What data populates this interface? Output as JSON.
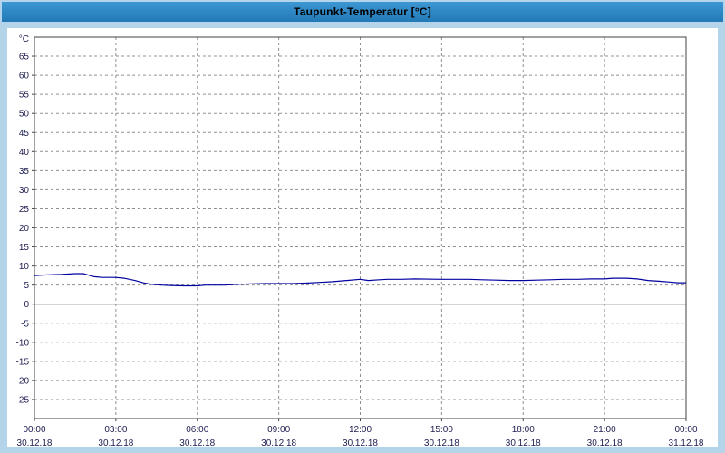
{
  "window": {
    "title": "Taupunkt-Temperatur [°C]"
  },
  "colors": {
    "titlebar": "#2e86c6",
    "frame": "#b3d4e9",
    "plot_background": "#ffffff",
    "plot_border": "#404040",
    "grid": "#909090",
    "zero_line": "#505050",
    "axis_text": "#1c1c50",
    "series_line": "#0000a0"
  },
  "chart_data": {
    "type": "line",
    "title": "Taupunkt-Temperatur [°C]",
    "ylabel": "°C",
    "ylim": [
      -30,
      70
    ],
    "x_range": [
      0,
      24
    ],
    "grid": "dashed",
    "yticks": [
      65,
      60,
      55,
      50,
      45,
      40,
      35,
      30,
      25,
      20,
      15,
      10,
      5,
      0,
      -5,
      -10,
      -15,
      -20,
      -25
    ],
    "xticks": [
      {
        "hour": 0,
        "time": "00:00",
        "date": "30.12.18"
      },
      {
        "hour": 3,
        "time": "03:00",
        "date": "30.12.18"
      },
      {
        "hour": 6,
        "time": "06:00",
        "date": "30.12.18"
      },
      {
        "hour": 9,
        "time": "09:00",
        "date": "30.12.18"
      },
      {
        "hour": 12,
        "time": "12:00",
        "date": "30.12.18"
      },
      {
        "hour": 15,
        "time": "15:00",
        "date": "30.12.18"
      },
      {
        "hour": 18,
        "time": "18:00",
        "date": "30.12.18"
      },
      {
        "hour": 21,
        "time": "21:00",
        "date": "30.12.18"
      },
      {
        "hour": 24,
        "time": "00:00",
        "date": "31.12.18"
      }
    ],
    "series": [
      {
        "name": "Taupunkt-Temperatur",
        "color": "#0000a0",
        "points": [
          [
            0,
            7.5
          ],
          [
            0.5,
            7.7
          ],
          [
            1,
            7.8
          ],
          [
            1.5,
            8.0
          ],
          [
            1.8,
            8.0
          ],
          [
            2.2,
            7.2
          ],
          [
            2.5,
            7.0
          ],
          [
            3,
            7.0
          ],
          [
            3.3,
            6.8
          ],
          [
            3.7,
            6.2
          ],
          [
            4,
            5.6
          ],
          [
            4.3,
            5.2
          ],
          [
            4.7,
            5.0
          ],
          [
            5,
            4.9
          ],
          [
            5.5,
            4.8
          ],
          [
            6,
            4.8
          ],
          [
            6.3,
            5.0
          ],
          [
            7,
            5.0
          ],
          [
            7.5,
            5.2
          ],
          [
            8,
            5.3
          ],
          [
            8.5,
            5.4
          ],
          [
            9,
            5.4
          ],
          [
            9.5,
            5.4
          ],
          [
            10,
            5.5
          ],
          [
            10.5,
            5.7
          ],
          [
            11,
            5.9
          ],
          [
            11.5,
            6.2
          ],
          [
            12,
            6.5
          ],
          [
            12.3,
            6.2
          ],
          [
            12.7,
            6.4
          ],
          [
            13,
            6.5
          ],
          [
            13.5,
            6.5
          ],
          [
            14,
            6.6
          ],
          [
            15,
            6.5
          ],
          [
            16,
            6.5
          ],
          [
            16.5,
            6.4
          ],
          [
            17,
            6.3
          ],
          [
            17.5,
            6.2
          ],
          [
            18,
            6.2
          ],
          [
            18.5,
            6.3
          ],
          [
            19,
            6.4
          ],
          [
            19.5,
            6.5
          ],
          [
            20,
            6.5
          ],
          [
            20.5,
            6.6
          ],
          [
            21,
            6.6
          ],
          [
            21.3,
            6.8
          ],
          [
            21.8,
            6.8
          ],
          [
            22.2,
            6.6
          ],
          [
            22.6,
            6.2
          ],
          [
            23,
            6.0
          ],
          [
            23.4,
            5.8
          ],
          [
            23.7,
            5.6
          ],
          [
            24,
            5.6
          ]
        ]
      }
    ]
  }
}
